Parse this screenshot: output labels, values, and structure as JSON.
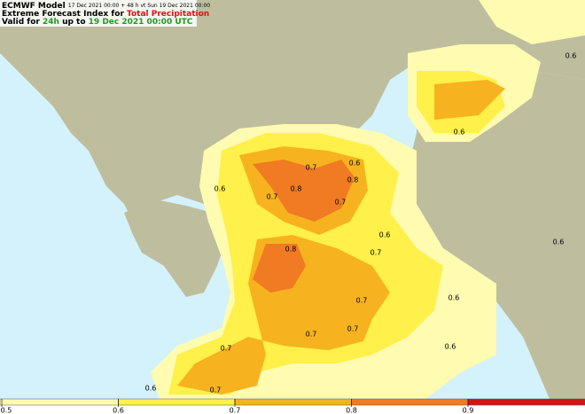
{
  "header": {
    "model": "ECMWF Model",
    "run": "17 Dec 2021 00:00 + 48 h vt Sun 19 Dec 2021 00:00",
    "title_prefix": "Extreme Forecast Index for",
    "title_highlight": "Total Precipitation",
    "valid_prefix": "Valid for",
    "valid_period": "24h",
    "valid_mid": "up to",
    "valid_date": "19 Dec 2021 00:00 UTC"
  },
  "contour_labels": [
    "0.6",
    "0.6",
    "0.7",
    "0.6",
    "0.8",
    "0.6",
    "0.7",
    "0.8",
    "0.7",
    "0.6",
    "0.6",
    "0.8",
    "0.7",
    "0.7",
    "0.6",
    "0.7",
    "0.7",
    "0.6",
    "0.7",
    "0.6",
    "0.7"
  ],
  "colorbar": {
    "ticks": [
      0.5,
      0.6,
      0.7,
      0.8,
      0.9
    ],
    "colors": [
      "#fffbb0",
      "#fff04a",
      "#f7b31f",
      "#f07b22",
      "#d01515"
    ]
  }
}
